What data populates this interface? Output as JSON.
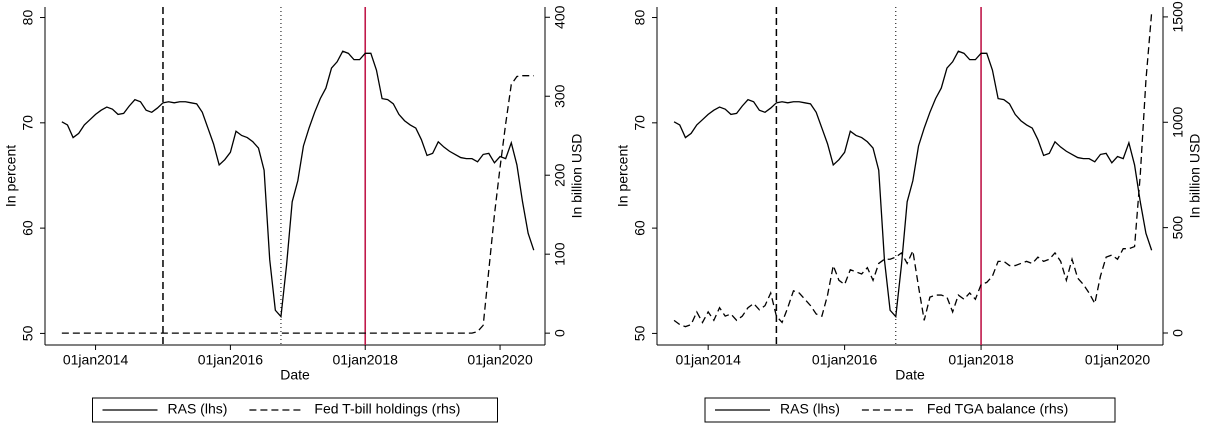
{
  "chart_data": [
    {
      "type": "line",
      "xlabel": "Date",
      "ylabel": "In percent",
      "y2label": "In billion USD",
      "x": [
        "01jul2013",
        "01aug2013",
        "01sep2013",
        "01oct2013",
        "01nov2013",
        "01dec2013",
        "01jan2014",
        "01feb2014",
        "01mar2014",
        "01apr2014",
        "01may2014",
        "01jun2014",
        "01jul2014",
        "01aug2014",
        "01sep2014",
        "01oct2014",
        "01nov2014",
        "01dec2014",
        "01jan2015",
        "01feb2015",
        "01mar2015",
        "01apr2015",
        "01may2015",
        "01jun2015",
        "01jul2015",
        "01aug2015",
        "01sep2015",
        "01oct2015",
        "01nov2015",
        "01dec2015",
        "01jan2016",
        "01feb2016",
        "01mar2016",
        "01apr2016",
        "01may2016",
        "01jun2016",
        "01jul2016",
        "01aug2016",
        "01sep2016",
        "01oct2016",
        "01nov2016",
        "01dec2016",
        "01jan2017",
        "01feb2017",
        "01mar2017",
        "01apr2017",
        "01may2017",
        "01jun2017",
        "01jul2017",
        "01aug2017",
        "01sep2017",
        "01oct2017",
        "01nov2017",
        "01dec2017",
        "01jan2018",
        "01feb2018",
        "01mar2018",
        "01apr2018",
        "01may2018",
        "01jun2018",
        "01jul2018",
        "01aug2018",
        "01sep2018",
        "01oct2018",
        "01nov2018",
        "01dec2018",
        "01jan2019",
        "01feb2019",
        "01mar2019",
        "01apr2019",
        "01may2019",
        "01jun2019",
        "01jul2019",
        "01aug2019",
        "01sep2019",
        "01oct2019",
        "01nov2019",
        "01dec2019",
        "01jan2020",
        "01feb2020",
        "01mar2020",
        "01apr2020",
        "01may2020",
        "01jun2020",
        "01jul2020"
      ],
      "xlim": [
        "01apr2013",
        "01sep2020"
      ],
      "xticks": [
        "01jan2014",
        "01jan2016",
        "01jan2018",
        "01jan2020"
      ],
      "ylim": [
        48.9,
        81
      ],
      "yticks": [
        50,
        60,
        70,
        80
      ],
      "y2lim": [
        -15,
        413
      ],
      "y2ticks": [
        0,
        100,
        200,
        300,
        400
      ],
      "vlines": [
        {
          "x": "01jan2015",
          "style": "dashed",
          "color": "#000000"
        },
        {
          "x": "01oct2016",
          "style": "dotted",
          "color": "#000000"
        },
        {
          "x": "01jan2018",
          "style": "solid",
          "color": "#c0184a"
        }
      ],
      "series": [
        {
          "name": "RAS (lhs)",
          "color": "#000000",
          "style": "solid",
          "values": [
            70.1,
            69.8,
            68.6,
            69.0,
            69.8,
            70.3,
            70.8,
            71.2,
            71.5,
            71.3,
            70.8,
            70.9,
            71.6,
            72.2,
            72.0,
            71.2,
            71.0,
            71.4,
            71.9,
            72.0,
            71.9,
            72.0,
            72.0,
            71.9,
            71.8,
            71.0,
            69.5,
            68.0,
            66.0,
            66.5,
            67.2,
            69.2,
            68.8,
            68.6,
            68.2,
            67.6,
            65.5,
            57.0,
            52.2,
            51.6,
            56.5,
            62.5,
            64.5,
            67.8,
            69.5,
            71.0,
            72.3,
            73.3,
            75.2,
            75.8,
            76.8,
            76.6,
            76.0,
            76.0,
            76.6,
            76.6,
            75.0,
            72.3,
            72.2,
            71.8,
            70.8,
            70.2,
            69.8,
            69.5,
            68.4,
            66.9,
            67.1,
            68.2,
            67.7,
            67.3,
            67.0,
            66.7,
            66.6,
            66.6,
            66.3,
            67.0,
            67.1,
            66.2,
            66.8,
            66.6,
            68.1,
            66.0,
            62.5,
            59.5,
            57.9
          ]
        },
        {
          "name": "Fed T-bill holdings (rhs)",
          "color": "#000000",
          "style": "dashed",
          "axis": "y2",
          "values": [
            0,
            0,
            0,
            0,
            0,
            0,
            0,
            0,
            0,
            0,
            0,
            0,
            0,
            0,
            0,
            0,
            0,
            0,
            0,
            0,
            0,
            0,
            0,
            0,
            0,
            0,
            0,
            0,
            0,
            0,
            0,
            0,
            0,
            0,
            0,
            0,
            0,
            0,
            0,
            0,
            0,
            0,
            0,
            0,
            0,
            0,
            0,
            0,
            0,
            0,
            0,
            0,
            0,
            0,
            0,
            0,
            0,
            0,
            0,
            0,
            0,
            0,
            0,
            0,
            0,
            0,
            0,
            0,
            0,
            0,
            0,
            0,
            0,
            0,
            2,
            10,
            80,
            150,
            210,
            265,
            315,
            325,
            326,
            326,
            326
          ]
        }
      ]
    },
    {
      "type": "line",
      "xlabel": "Date",
      "ylabel": "In percent",
      "y2label": "In billion USD",
      "x": [
        "01jul2013",
        "01aug2013",
        "01sep2013",
        "01oct2013",
        "01nov2013",
        "01dec2013",
        "01jan2014",
        "01feb2014",
        "01mar2014",
        "01apr2014",
        "01may2014",
        "01jun2014",
        "01jul2014",
        "01aug2014",
        "01sep2014",
        "01oct2014",
        "01nov2014",
        "01dec2014",
        "01jan2015",
        "01feb2015",
        "01mar2015",
        "01apr2015",
        "01may2015",
        "01jun2015",
        "01jul2015",
        "01aug2015",
        "01sep2015",
        "01oct2015",
        "01nov2015",
        "01dec2015",
        "01jan2016",
        "01feb2016",
        "01mar2016",
        "01apr2016",
        "01may2016",
        "01jun2016",
        "01jul2016",
        "01aug2016",
        "01sep2016",
        "01oct2016",
        "01nov2016",
        "01dec2016",
        "01jan2017",
        "01feb2017",
        "01mar2017",
        "01apr2017",
        "01may2017",
        "01jun2017",
        "01jul2017",
        "01aug2017",
        "01sep2017",
        "01oct2017",
        "01nov2017",
        "01dec2017",
        "01jan2018",
        "01feb2018",
        "01mar2018",
        "01apr2018",
        "01may2018",
        "01jun2018",
        "01jul2018",
        "01aug2018",
        "01sep2018",
        "01oct2018",
        "01nov2018",
        "01dec2018",
        "01jan2019",
        "01feb2019",
        "01mar2019",
        "01apr2019",
        "01may2019",
        "01jun2019",
        "01jul2019",
        "01aug2019",
        "01sep2019",
        "01oct2019",
        "01nov2019",
        "01dec2019",
        "01jan2020",
        "01feb2020",
        "01mar2020",
        "01apr2020",
        "01may2020",
        "01jun2020",
        "01jul2020"
      ],
      "xlim": [
        "01apr2013",
        "01sep2020"
      ],
      "xticks": [
        "01jan2014",
        "01jan2016",
        "01jan2018",
        "01jan2020"
      ],
      "ylim": [
        48.9,
        81
      ],
      "yticks": [
        50,
        60,
        70,
        80
      ],
      "y2lim": [
        -57,
        1547
      ],
      "y2ticks": [
        0,
        500,
        1000,
        1500
      ],
      "vlines": [
        {
          "x": "01jan2015",
          "style": "dashed",
          "color": "#000000"
        },
        {
          "x": "01oct2016",
          "style": "dotted",
          "color": "#000000"
        },
        {
          "x": "01jan2018",
          "style": "solid",
          "color": "#c0184a"
        }
      ],
      "series": [
        {
          "name": "RAS (lhs)",
          "color": "#000000",
          "style": "solid",
          "values": [
            70.1,
            69.8,
            68.6,
            69.0,
            69.8,
            70.3,
            70.8,
            71.2,
            71.5,
            71.3,
            70.8,
            70.9,
            71.6,
            72.2,
            72.0,
            71.2,
            71.0,
            71.4,
            71.9,
            72.0,
            71.9,
            72.0,
            72.0,
            71.9,
            71.8,
            71.0,
            69.5,
            68.0,
            66.0,
            66.5,
            67.2,
            69.2,
            68.8,
            68.6,
            68.2,
            67.6,
            65.5,
            57.0,
            52.2,
            51.6,
            56.5,
            62.5,
            64.5,
            67.8,
            69.5,
            71.0,
            72.3,
            73.3,
            75.2,
            75.8,
            76.8,
            76.6,
            76.0,
            76.0,
            76.6,
            76.6,
            75.0,
            72.3,
            72.2,
            71.8,
            70.8,
            70.2,
            69.8,
            69.5,
            68.4,
            66.9,
            67.1,
            68.2,
            67.7,
            67.3,
            67.0,
            66.7,
            66.6,
            66.6,
            66.3,
            67.0,
            67.1,
            66.2,
            66.8,
            66.6,
            68.1,
            66.0,
            62.5,
            59.5,
            57.9
          ]
        },
        {
          "name": "Fed TGA balance (rhs)",
          "color": "#000000",
          "style": "dashed",
          "axis": "y2",
          "values": [
            60,
            40,
            30,
            40,
            100,
            50,
            100,
            60,
            120,
            80,
            90,
            60,
            80,
            120,
            140,
            110,
            130,
            190,
            80,
            50,
            120,
            200,
            190,
            160,
            130,
            90,
            80,
            180,
            320,
            250,
            230,
            300,
            290,
            280,
            310,
            250,
            330,
            350,
            350,
            360,
            380,
            330,
            390,
            220,
            60,
            170,
            180,
            180,
            170,
            100,
            180,
            160,
            190,
            160,
            230,
            240,
            270,
            340,
            340,
            320,
            320,
            330,
            340,
            330,
            360,
            340,
            350,
            380,
            340,
            250,
            350,
            260,
            230,
            190,
            140,
            270,
            360,
            370,
            350,
            400,
            400,
            410,
            750,
            1200,
            1520
          ]
        }
      ]
    }
  ]
}
